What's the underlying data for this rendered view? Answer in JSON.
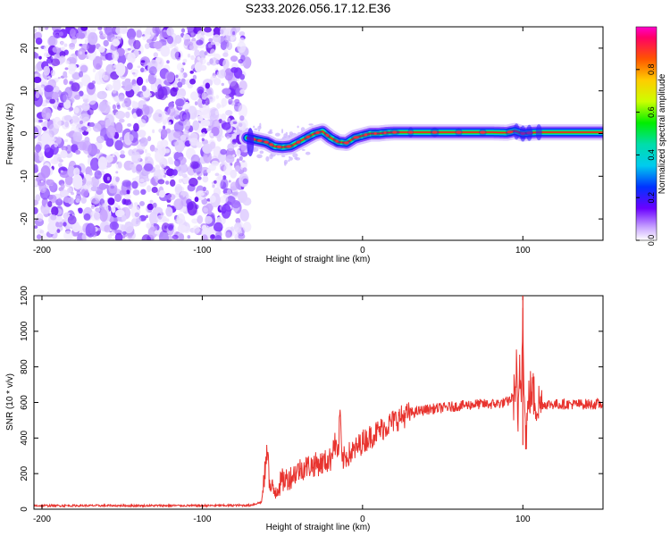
{
  "title": "S233.2026.056.17.12.E36",
  "chart_data": [
    {
      "type": "heatmap",
      "xlabel": "Height of straight line (km)",
      "ylabel": "Frequency (Hz)",
      "xlim": [
        -205,
        150
      ],
      "ylim": [
        -25,
        25
      ],
      "xticks": [
        -200,
        -100,
        0,
        100
      ],
      "yticks": [
        -20,
        -10,
        0,
        10,
        20
      ],
      "noise_region_x": [
        -205,
        -72
      ],
      "ridge": {
        "x": [
          -72,
          -66,
          -60,
          -55,
          -50,
          -45,
          -40,
          -35,
          -30,
          -25,
          -20,
          -15,
          -10,
          -5,
          0,
          5,
          10,
          15,
          20,
          40,
          60,
          80,
          90,
          95,
          100,
          105,
          110,
          120,
          150
        ],
        "freq": [
          -1,
          -1.5,
          -2,
          -3,
          -3.2,
          -3,
          -2,
          -1,
          0,
          0.5,
          -1,
          -2,
          -2.2,
          -1,
          -0.5,
          0,
          0,
          0.2,
          0.3,
          0.3,
          0.3,
          0.3,
          0.2,
          0.6,
          0,
          0.2,
          0.3,
          0.3,
          0.3
        ]
      },
      "colorbar": {
        "label": "Normalized spectral amplitude",
        "ticks": [
          "0.0",
          "0.2",
          "0.4",
          "0.6",
          "0.8"
        ],
        "range": [
          0,
          1
        ]
      }
    },
    {
      "type": "line",
      "xlabel": "Height of straight line (km)",
      "ylabel": "SNR (10 * v/v)",
      "xlim": [
        -205,
        150
      ],
      "ylim": [
        0,
        1200
      ],
      "xticks": [
        -200,
        -100,
        0,
        100
      ],
      "yticks": [
        0,
        200,
        400,
        600,
        800,
        1000,
        1200
      ],
      "series": [
        {
          "name": "SNR",
          "color": "#e8332e",
          "x": [
            -205,
            -150,
            -100,
            -70,
            -63,
            -60,
            -59,
            -58,
            -55,
            -50,
            -45,
            -40,
            -35,
            -30,
            -25,
            -20,
            -18,
            -15,
            -14,
            -13,
            -12,
            -10,
            -5,
            0,
            10,
            20,
            30,
            40,
            50,
            60,
            70,
            80,
            90,
            95,
            96,
            97,
            98,
            99,
            100,
            101,
            102,
            104,
            106,
            108,
            110,
            120,
            130,
            150
          ],
          "y": [
            20,
            20,
            20,
            22,
            40,
            280,
            370,
            120,
            100,
            160,
            180,
            220,
            240,
            250,
            260,
            280,
            380,
            320,
            580,
            260,
            280,
            300,
            330,
            380,
            440,
            500,
            540,
            560,
            570,
            580,
            590,
            590,
            600,
            640,
            780,
            400,
            820,
            620,
            1200,
            560,
            420,
            650,
            660,
            600,
            590,
            590,
            590,
            590
          ]
        }
      ]
    }
  ]
}
